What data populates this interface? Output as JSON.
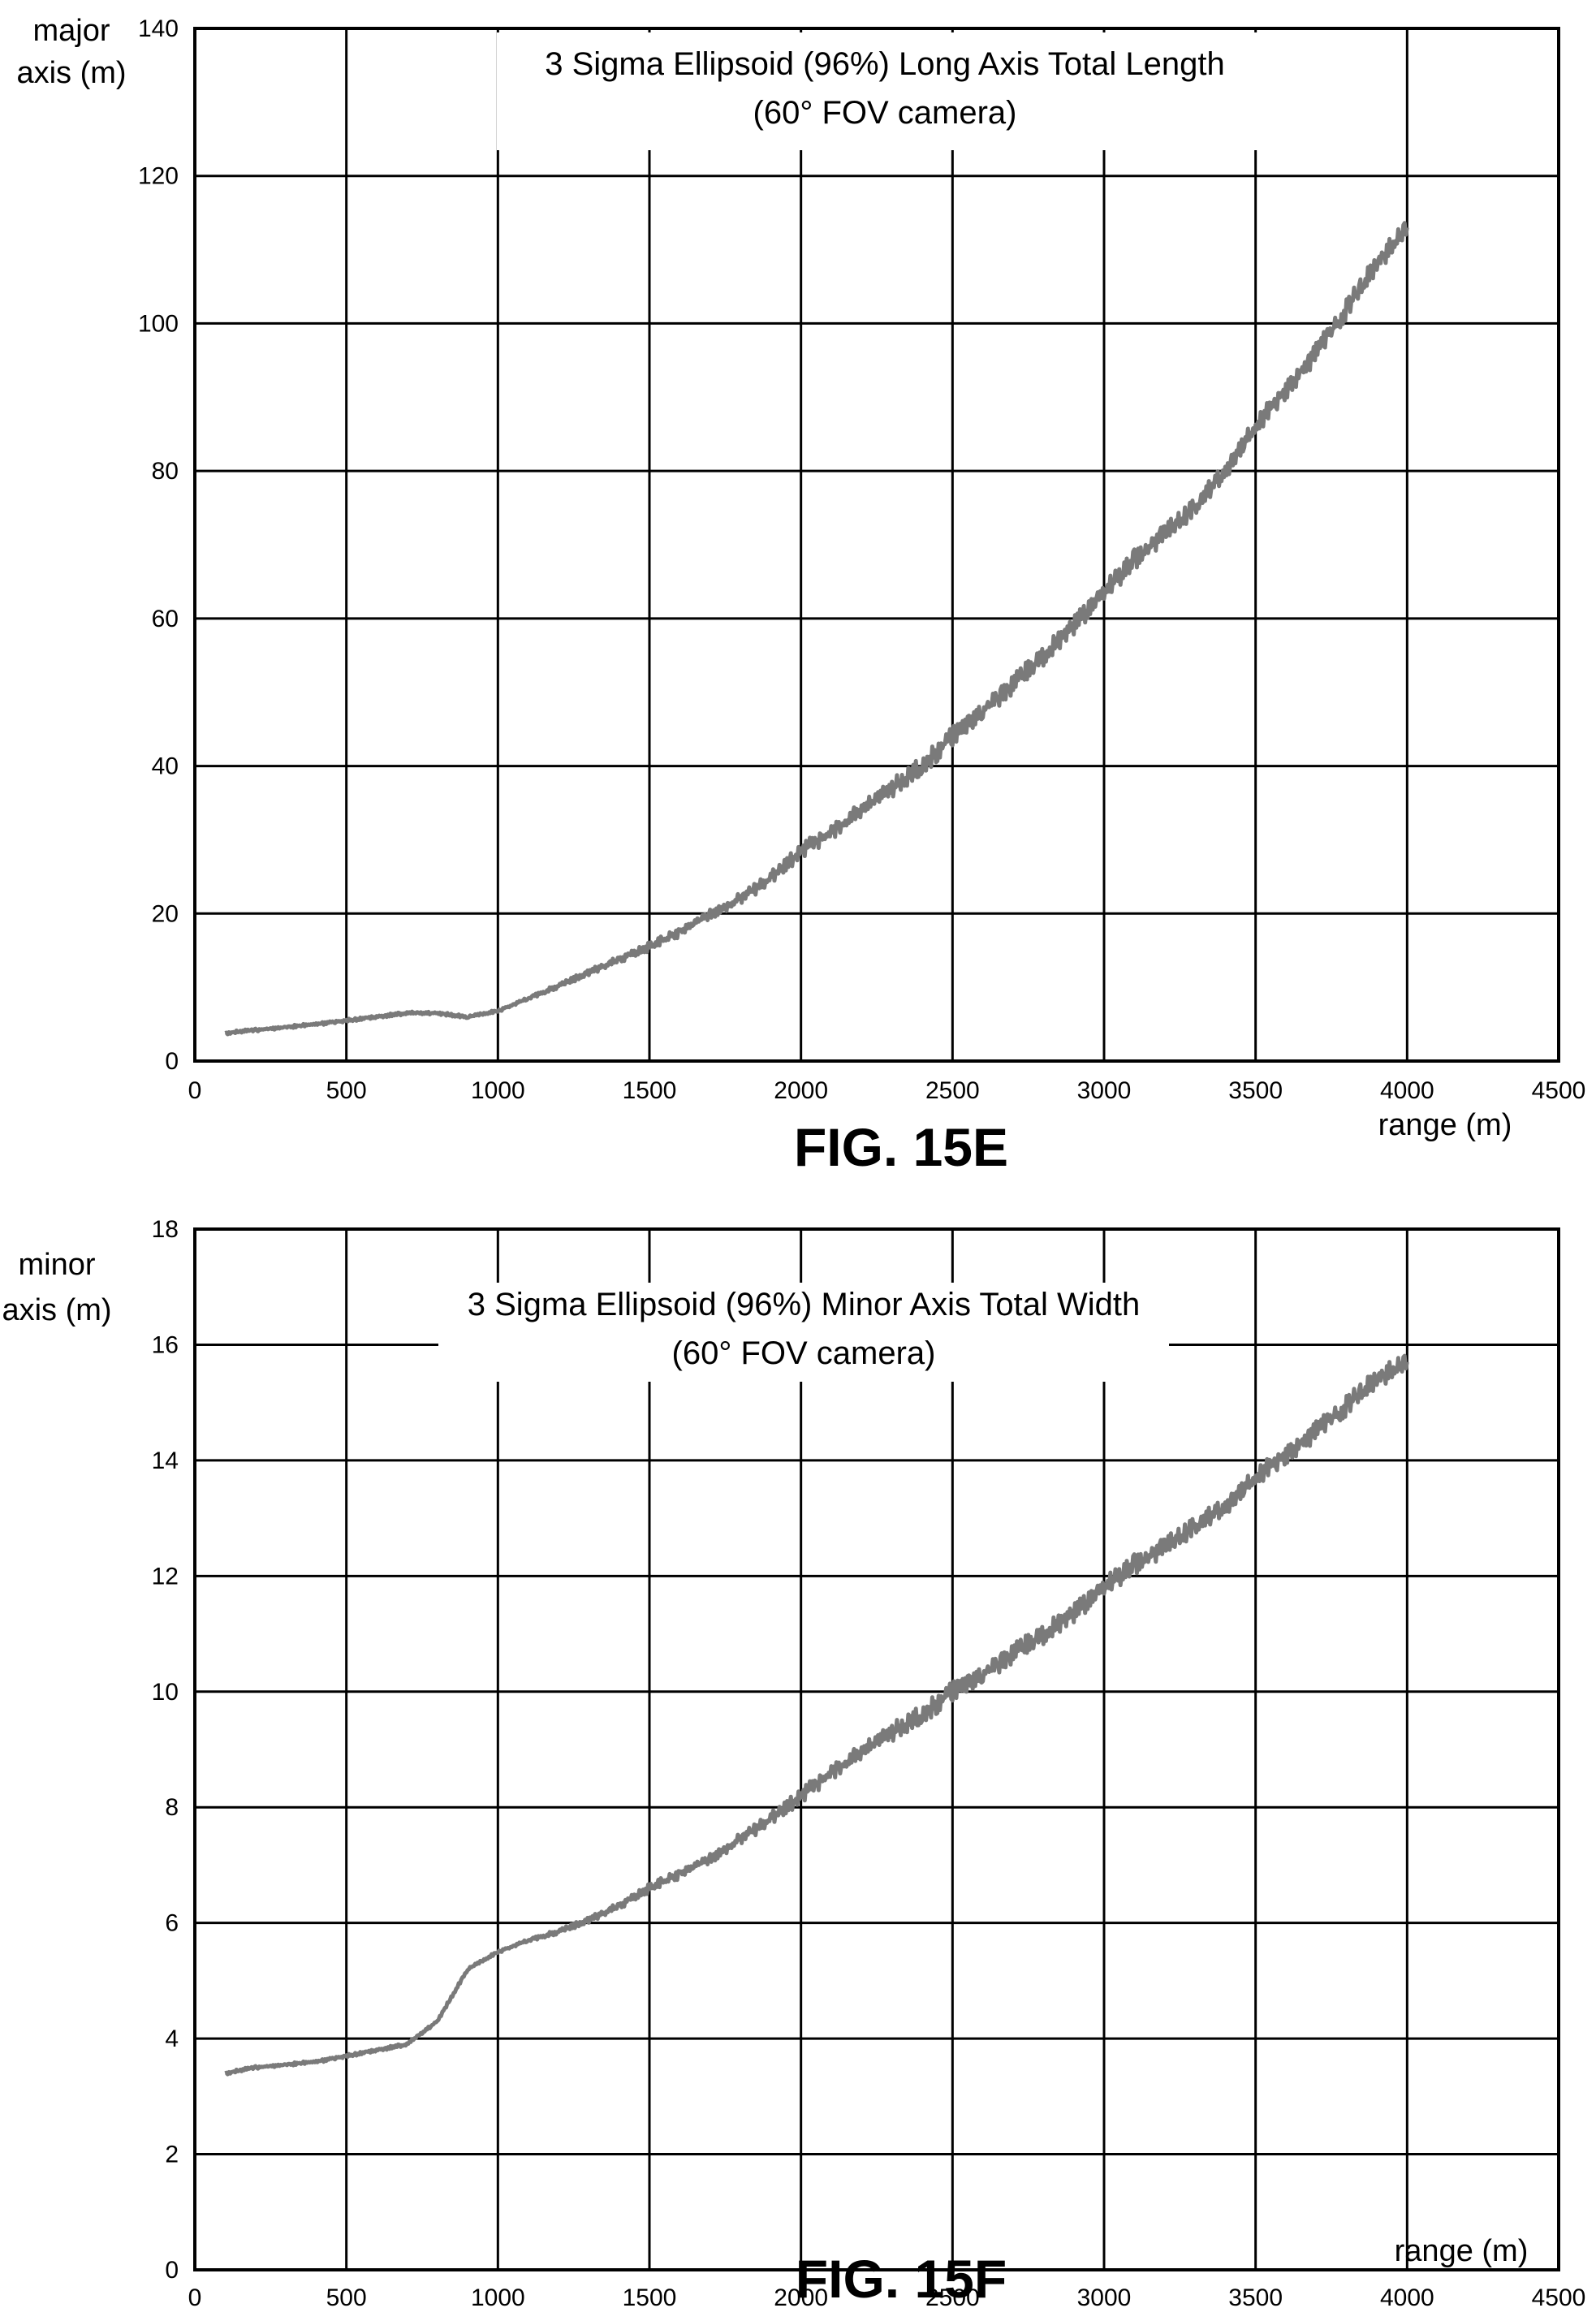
{
  "chart_data": [
    {
      "type": "line",
      "title": [
        "3 Sigma Ellipsoid (96%) Long Axis Total Length",
        "(60° FOV camera)"
      ],
      "figure_label": "FIG. 15E",
      "xlabel": "range (m)",
      "ylabel": [
        "major",
        "axis (m)"
      ],
      "xlim": [
        0,
        4500
      ],
      "ylim": [
        0,
        140
      ],
      "xticks": [
        0,
        500,
        1000,
        1500,
        2000,
        2500,
        3000,
        3500,
        4000,
        4500
      ],
      "yticks": [
        0,
        20,
        40,
        60,
        80,
        100,
        120,
        140
      ],
      "grid": true,
      "series": [
        {
          "color": "#7a7a7a",
          "x": [
            100,
            200,
            300,
            400,
            500,
            600,
            700,
            800,
            900,
            1000,
            1100,
            1200,
            1300,
            1400,
            1500,
            1600,
            1700,
            1800,
            1900,
            2000,
            2100,
            2200,
            2300,
            2400,
            2500,
            2600,
            2700,
            2800,
            2900,
            3000,
            3100,
            3200,
            3300,
            3400,
            3500,
            3600,
            3700,
            3800,
            3900,
            4000
          ],
          "y": [
            3.8,
            4.2,
            4.6,
            5.0,
            5.5,
            6.0,
            6.5,
            6.5,
            6.0,
            6.8,
            8.5,
            10.2,
            12.0,
            13.8,
            15.5,
            17.5,
            19.8,
            22.0,
            24.8,
            28.5,
            31.0,
            34.0,
            37.0,
            40.0,
            44.0,
            47.5,
            51.0,
            55.0,
            59.0,
            63.5,
            68.0,
            71.5,
            75.0,
            80.0,
            86.0,
            91.0,
            96.0,
            102.0,
            108.0,
            113.0
          ]
        }
      ]
    },
    {
      "type": "line",
      "title": [
        "3 Sigma Ellipsoid (96%) Minor Axis Total Width",
        "(60° FOV camera)"
      ],
      "figure_label": "FIG. 15F",
      "xlabel": "range (m)",
      "ylabel": [
        "minor",
        "axis (m)"
      ],
      "xlim": [
        0,
        4500
      ],
      "ylim": [
        0,
        18
      ],
      "xticks": [
        0,
        500,
        1000,
        1500,
        2000,
        2500,
        3000,
        3500,
        4000,
        4500
      ],
      "yticks": [
        0,
        2,
        4,
        6,
        8,
        10,
        12,
        14,
        16,
        18
      ],
      "grid": true,
      "series": [
        {
          "color": "#7a7a7a",
          "x": [
            100,
            200,
            300,
            400,
            500,
            600,
            700,
            800,
            900,
            1000,
            1100,
            1200,
            1300,
            1400,
            1500,
            1600,
            1700,
            1800,
            1900,
            2000,
            2100,
            2200,
            2300,
            2400,
            2500,
            2600,
            2700,
            2800,
            2900,
            3000,
            3100,
            3200,
            3300,
            3400,
            3500,
            3600,
            3700,
            3800,
            3900,
            4000
          ],
          "y": [
            3.4,
            3.5,
            3.55,
            3.6,
            3.7,
            3.8,
            3.9,
            4.3,
            5.2,
            5.5,
            5.7,
            5.85,
            6.05,
            6.3,
            6.6,
            6.85,
            7.1,
            7.45,
            7.8,
            8.2,
            8.6,
            8.95,
            9.3,
            9.6,
            10.0,
            10.3,
            10.65,
            11.0,
            11.35,
            11.8,
            12.2,
            12.5,
            12.85,
            13.2,
            13.7,
            14.1,
            14.5,
            14.95,
            15.4,
            15.7
          ]
        }
      ]
    }
  ]
}
